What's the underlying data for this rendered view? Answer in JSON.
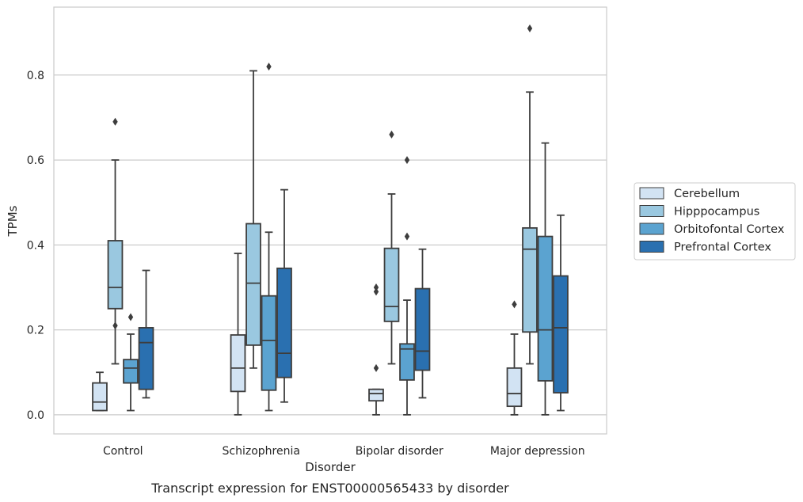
{
  "chart_data": {
    "type": "boxplot",
    "title": "",
    "caption": "Transcript expression for ENST00000565433 by disorder",
    "xlabel": "Disorder",
    "ylabel": "TPMs",
    "ylim": [
      -0.045,
      0.96
    ],
    "yticks": [
      0.0,
      0.2,
      0.4,
      0.6,
      0.8
    ],
    "ytick_labels": [
      "0.0",
      "0.2",
      "0.4",
      "0.6",
      "0.8"
    ],
    "grid": "horizontal",
    "legend_position": "right",
    "categories": [
      "Control",
      "Schizophrenia",
      "Bipolar disorder",
      "Major depression"
    ],
    "series": [
      {
        "name": "Cerebellum",
        "color": "#d2e3f3",
        "boxes": [
          {
            "whislo": 0.01,
            "q1": 0.01,
            "med": 0.03,
            "q3": 0.075,
            "whishi": 0.1,
            "fliers": []
          },
          {
            "whislo": 0.0,
            "q1": 0.055,
            "med": 0.11,
            "q3": 0.188,
            "whishi": 0.38,
            "fliers": []
          },
          {
            "whislo": 0.0,
            "q1": 0.033,
            "med": 0.05,
            "q3": 0.06,
            "whishi": 0.06,
            "fliers": [
              0.11,
              0.29,
              0.3
            ]
          },
          {
            "whislo": 0.0,
            "q1": 0.02,
            "med": 0.05,
            "q3": 0.11,
            "whishi": 0.19,
            "fliers": [
              0.26
            ]
          }
        ]
      },
      {
        "name": "Hipppocampus",
        "color": "#9ac8e0",
        "boxes": [
          {
            "whislo": 0.12,
            "q1": 0.25,
            "med": 0.3,
            "q3": 0.41,
            "whishi": 0.6,
            "fliers": [
              0.21,
              0.69
            ]
          },
          {
            "whislo": 0.11,
            "q1": 0.164,
            "med": 0.31,
            "q3": 0.45,
            "whishi": 0.81,
            "fliers": []
          },
          {
            "whislo": 0.12,
            "q1": 0.22,
            "med": 0.255,
            "q3": 0.392,
            "whishi": 0.52,
            "fliers": [
              0.66
            ]
          },
          {
            "whislo": 0.12,
            "q1": 0.195,
            "med": 0.39,
            "q3": 0.44,
            "whishi": 0.76,
            "fliers": [
              0.91
            ]
          }
        ]
      },
      {
        "name": "Orbitofontal Cortex",
        "color": "#5ba3d0",
        "boxes": [
          {
            "whislo": 0.01,
            "q1": 0.075,
            "med": 0.11,
            "q3": 0.13,
            "whishi": 0.19,
            "fliers": [
              0.23
            ]
          },
          {
            "whislo": 0.01,
            "q1": 0.058,
            "med": 0.175,
            "q3": 0.28,
            "whishi": 0.43,
            "fliers": [
              0.82
            ]
          },
          {
            "whislo": 0.0,
            "q1": 0.082,
            "med": 0.155,
            "q3": 0.167,
            "whishi": 0.27,
            "fliers": [
              0.42,
              0.6
            ]
          },
          {
            "whislo": 0.0,
            "q1": 0.08,
            "med": 0.2,
            "q3": 0.42,
            "whishi": 0.64,
            "fliers": []
          }
        ]
      },
      {
        "name": "Prefrontal Cortex",
        "color": "#2a70b0",
        "boxes": [
          {
            "whislo": 0.04,
            "q1": 0.06,
            "med": 0.17,
            "q3": 0.205,
            "whishi": 0.34,
            "fliers": []
          },
          {
            "whislo": 0.03,
            "q1": 0.088,
            "med": 0.145,
            "q3": 0.345,
            "whishi": 0.53,
            "fliers": []
          },
          {
            "whislo": 0.04,
            "q1": 0.105,
            "med": 0.15,
            "q3": 0.297,
            "whishi": 0.39,
            "fliers": []
          },
          {
            "whislo": 0.01,
            "q1": 0.052,
            "med": 0.205,
            "q3": 0.327,
            "whishi": 0.47,
            "fliers": []
          }
        ]
      }
    ]
  }
}
